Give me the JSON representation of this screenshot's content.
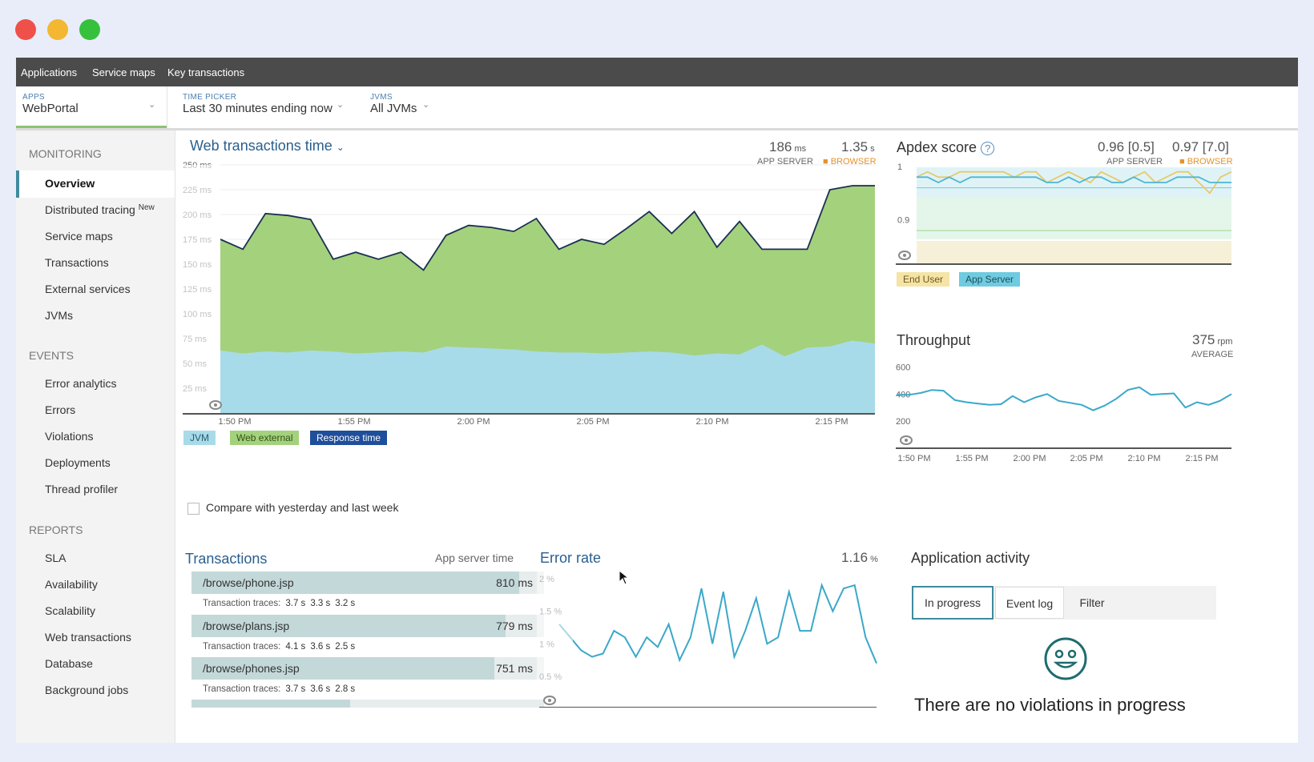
{
  "colors": {
    "accent": "#3f8b9e",
    "jvm": "#a8dbe9",
    "web_external": "#a4d17c",
    "response_time": "#1f4e9b",
    "throughput_line": "#3aa8c9",
    "end_user": "#f5e4a6",
    "app_server": "#6fcbe0",
    "browser": "#e4932a"
  },
  "window_controls": [
    "close",
    "minimize",
    "maximize"
  ],
  "topnav": {
    "items": [
      "Applications",
      "Service maps",
      "Key transactions"
    ]
  },
  "filters": {
    "apps": {
      "label": "APPS",
      "value": "WebPortal"
    },
    "time_picker": {
      "label": "TIME PICKER",
      "value": "Last 30 minutes ending now"
    },
    "jvms": {
      "label": "JVMS",
      "value": "All JVMs"
    }
  },
  "sidebar": {
    "monitoring_title": "MONITORING",
    "monitoring_items": [
      "Overview",
      "Distributed tracing",
      "Service maps",
      "Transactions",
      "External services",
      "JVMs"
    ],
    "new_badge": "New",
    "events_title": "EVENTS",
    "events_items": [
      "Error analytics",
      "Errors",
      "Violations",
      "Deployments",
      "Thread profiler"
    ],
    "reports_title": "REPORTS",
    "reports_items": [
      "SLA",
      "Availability",
      "Scalability",
      "Web transactions",
      "Database",
      "Background jobs"
    ]
  },
  "web_tx": {
    "title": "Web transactions time",
    "app_value": "186",
    "app_unit": "ms",
    "app_label": "APP SERVER",
    "browser_value": "1.35",
    "browser_unit": "s",
    "browser_label": "BROWSER",
    "legend": [
      "JVM",
      "Web external",
      "Response time"
    ]
  },
  "apdex": {
    "title": "Apdex score",
    "app_value": "0.96 [0.5]",
    "app_label": "APP SERVER",
    "browser_value": "0.97 [7.0]",
    "browser_label": "BROWSER",
    "legend": [
      "End User",
      "App Server"
    ]
  },
  "throughput": {
    "title": "Throughput",
    "value": "375",
    "unit": "rpm",
    "label": "AVERAGE"
  },
  "compare_label": "Compare with yesterday and last week",
  "transactions": {
    "title": "Transactions",
    "subtitle": "App server time",
    "traces_label": "Transaction traces:",
    "rows": [
      {
        "name": "/browse/phone.jsp",
        "value": "810 ms",
        "fraction": 0.93,
        "traces": [
          "3.7 s",
          "3.3 s",
          "3.2 s"
        ]
      },
      {
        "name": "/browse/plans.jsp",
        "value": "779 ms",
        "fraction": 0.89,
        "traces": [
          "4.1 s",
          "3.6 s",
          "2.5 s"
        ]
      },
      {
        "name": "/browse/phones.jsp",
        "value": "751 ms",
        "fraction": 0.86,
        "traces": [
          "3.7 s",
          "3.6 s",
          "2.8 s"
        ]
      }
    ]
  },
  "error_rate": {
    "title": "Error rate",
    "value": "1.16",
    "unit": "%"
  },
  "activity": {
    "title": "Application activity",
    "tabs": [
      "In progress",
      "Event log",
      "Filter"
    ],
    "empty_message": "There are no violations in progress"
  },
  "chart_data": [
    {
      "type": "area",
      "title": "Web transactions time",
      "x_ticks": [
        "1:50 PM",
        "1:55 PM",
        "2:00 PM",
        "2:05 PM",
        "2:10 PM",
        "2:15 PM"
      ],
      "y_ticks": [
        "250 ms",
        "225 ms",
        "200 ms",
        "175 ms",
        "150 ms",
        "125 ms",
        "100 ms",
        "75 ms",
        "50 ms",
        "25 ms"
      ],
      "ylim": [
        0,
        250
      ],
      "series": [
        {
          "name": "JVM",
          "values": [
            63,
            60,
            62,
            61,
            63,
            62,
            60,
            61,
            62,
            61,
            67,
            66,
            65,
            64,
            62,
            61,
            61,
            60,
            61,
            62,
            61,
            58,
            60,
            59,
            69,
            57,
            66,
            67,
            73,
            70
          ]
        },
        {
          "name": "Web external",
          "values": [
            175,
            165,
            201,
            199,
            195,
            155,
            162,
            155,
            162,
            144,
            179,
            189,
            187,
            183,
            196,
            165,
            175,
            170,
            186,
            203,
            181,
            203,
            167,
            193,
            165,
            165,
            165,
            225,
            229,
            229
          ]
        },
        {
          "name": "Response time",
          "values": [
            175,
            165,
            201,
            199,
            195,
            155,
            162,
            155,
            162,
            144,
            179,
            189,
            187,
            183,
            196,
            165,
            175,
            170,
            186,
            203,
            181,
            203,
            167,
            193,
            165,
            165,
            165,
            225,
            229,
            229
          ]
        }
      ]
    },
    {
      "type": "line",
      "title": "Apdex score",
      "y_ticks": [
        "1",
        "0.9"
      ],
      "ylim": [
        0.82,
        1.0
      ],
      "series": [
        {
          "name": "End User",
          "values": [
            0.98,
            0.99,
            0.98,
            0.98,
            0.99,
            0.99,
            0.99,
            0.99,
            0.99,
            0.98,
            0.99,
            0.99,
            0.97,
            0.98,
            0.99,
            0.98,
            0.97,
            0.99,
            0.98,
            0.97,
            0.98,
            0.99,
            0.97,
            0.98,
            0.99,
            0.99,
            0.97,
            0.95,
            0.98,
            0.99
          ]
        },
        {
          "name": "App Server",
          "values": [
            0.98,
            0.98,
            0.97,
            0.98,
            0.97,
            0.98,
            0.98,
            0.98,
            0.98,
            0.98,
            0.98,
            0.98,
            0.97,
            0.97,
            0.98,
            0.97,
            0.98,
            0.98,
            0.97,
            0.97,
            0.98,
            0.97,
            0.97,
            0.97,
            0.98,
            0.98,
            0.98,
            0.97,
            0.97,
            0.97
          ]
        }
      ]
    },
    {
      "type": "line",
      "title": "Throughput",
      "x_ticks": [
        "1:50 PM",
        "1:55 PM",
        "2:00 PM",
        "2:05 PM",
        "2:10 PM",
        "2:15 PM"
      ],
      "y_ticks": [
        "600",
        "400",
        "200"
      ],
      "ylim": [
        0,
        650
      ],
      "series": [
        {
          "name": "Throughput",
          "values": [
            395,
            395,
            408,
            430,
            425,
            355,
            340,
            330,
            320,
            325,
            385,
            340,
            375,
            400,
            350,
            335,
            320,
            280,
            315,
            365,
            430,
            450,
            395,
            400,
            405,
            300,
            340,
            320,
            350,
            400
          ]
        }
      ]
    },
    {
      "type": "line",
      "title": "Error rate",
      "y_ticks": [
        "2 %",
        "1.5 %",
        "1 %",
        "0.5 %"
      ],
      "ylim": [
        0.4,
        2.1
      ],
      "series": [
        {
          "name": "Error rate",
          "values": [
            1.3,
            1.1,
            0.9,
            0.8,
            0.85,
            1.2,
            1.1,
            0.8,
            1.1,
            0.95,
            1.3,
            0.75,
            1.1,
            1.85,
            1.0,
            1.8,
            0.8,
            1.2,
            1.7,
            1.0,
            1.1,
            1.8,
            1.2,
            1.2,
            1.9,
            1.5,
            1.85,
            1.9,
            1.1,
            0.7
          ]
        }
      ]
    }
  ]
}
